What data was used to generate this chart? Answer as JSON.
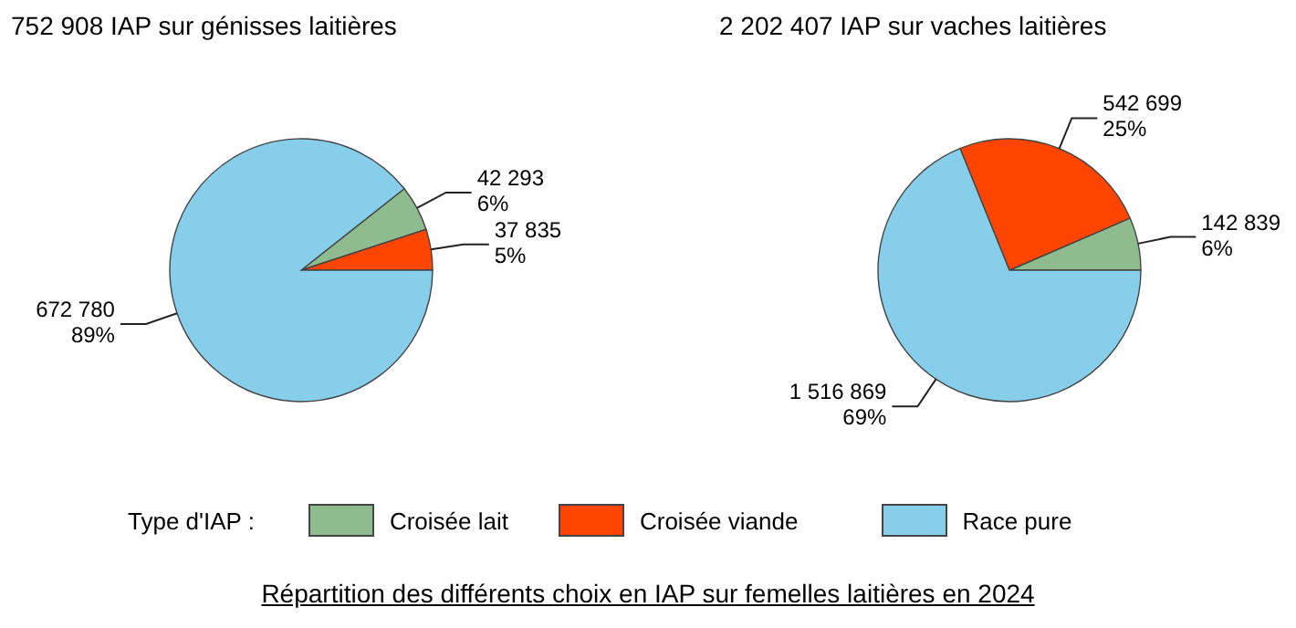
{
  "chart_data": [
    {
      "type": "pie",
      "title": "752 908 IAP sur génisses laitières",
      "categories": [
        "Croisée lait",
        "Croisée viande",
        "Race pure"
      ],
      "values": [
        42293,
        37835,
        672780
      ],
      "colors": [
        "#8fbc8f",
        "#ff4500",
        "#87ceeb"
      ],
      "value_labels": [
        "42 293\n6%",
        "37 835\n5%",
        "672 780\n89%"
      ],
      "legend_title": "Type d'IAP :",
      "legend": "bottom"
    },
    {
      "type": "pie",
      "title": "2 202 407 IAP sur vaches laitières",
      "categories": [
        null,
        null,
        null
      ],
      "values": [
        142839,
        542699,
        1516869
      ],
      "colors": [
        "#8fbc8f",
        "#ff4500",
        "#87ceeb"
      ],
      "value_labels": [
        "142 839\n6%",
        "542 699\n25%",
        "1 516 869\n69%"
      ],
      "annotations": [
        "Répartition des différents choix en IAP sur femelles laitières en 2024"
      ]
    }
  ]
}
